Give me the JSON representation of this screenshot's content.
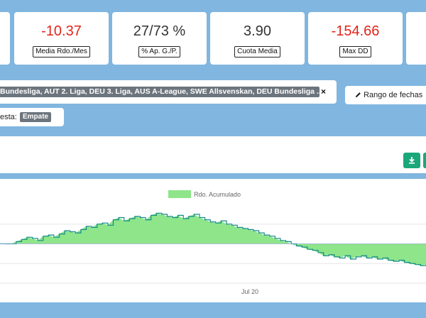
{
  "stats": [
    {
      "value": "-10.37",
      "label": "Media Rdo./Mes",
      "tone": "neg"
    },
    {
      "value": "27/73 %",
      "label": "% Ap. G./P.",
      "tone": "neu"
    },
    {
      "value": "3.90",
      "label": "Cuota Media",
      "tone": "neu"
    },
    {
      "value": "-154.66",
      "label": "Max DD",
      "tone": "neg"
    }
  ],
  "filters": {
    "leagues_tag": "Bundesliga, AUT 2. Liga, DEU 3. Liga, AUS A-League, SWE Allsvenskan, DEU Bundesliga ...",
    "close_symbol": "×",
    "bet_label": "esta:",
    "bet_value": "Empate"
  },
  "date_button": {
    "label": "Rango de fechas",
    "icon": "pencil-icon"
  },
  "actions": {
    "download_icon": "download-icon",
    "download_color": "#1aa77a"
  },
  "chart_data": {
    "type": "area",
    "series": [
      {
        "name": "Rdo. Acumulado",
        "color": "#8ee58a",
        "line": "#138a8a"
      }
    ],
    "x_ticks": [
      "Jul 20"
    ],
    "y_points": [
      0,
      0,
      0,
      2,
      4,
      6,
      5,
      3,
      7,
      8,
      6,
      9,
      12,
      11,
      10,
      13,
      16,
      15,
      18,
      19,
      17,
      22,
      24,
      21,
      23,
      25,
      24,
      22,
      26,
      28,
      27,
      25,
      24,
      26,
      23,
      25,
      27,
      24,
      22,
      20,
      19,
      21,
      18,
      17,
      15,
      14,
      13,
      12,
      10,
      8,
      7,
      5,
      3,
      2,
      0,
      -2,
      -3,
      -5,
      -6,
      -8,
      -11,
      -10,
      -12,
      -13,
      -11,
      -14,
      -12,
      -11,
      -13,
      -12,
      -14,
      -13,
      -15,
      -16,
      -15,
      -17,
      -18,
      -19,
      -20,
      -19
    ],
    "ylim": [
      -38,
      36
    ],
    "grid": true,
    "legend": "top-center"
  }
}
